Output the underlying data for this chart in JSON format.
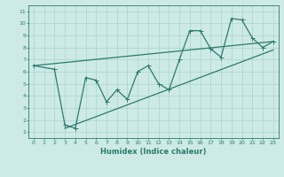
{
  "title": "",
  "xlabel": "Humidex (Indice chaleur)",
  "ylabel": "",
  "xlim": [
    -0.5,
    23.5
  ],
  "ylim": [
    0.5,
    11.5
  ],
  "xticks": [
    0,
    1,
    2,
    3,
    4,
    5,
    6,
    7,
    8,
    9,
    10,
    11,
    12,
    13,
    14,
    15,
    16,
    17,
    18,
    19,
    20,
    21,
    22,
    23
  ],
  "yticks": [
    1,
    2,
    3,
    4,
    5,
    6,
    7,
    8,
    9,
    10,
    11
  ],
  "line_color": "#2a7b6e",
  "bg_color": "#ceeae6",
  "grid_color": "#a8d4ce",
  "line1_x": [
    0,
    2,
    3,
    4,
    5,
    6,
    7,
    8,
    9,
    10,
    11,
    12,
    13,
    14,
    15,
    16,
    17,
    18,
    19,
    20,
    21,
    22,
    23
  ],
  "line1_y": [
    6.5,
    6.2,
    1.6,
    1.3,
    5.5,
    5.3,
    3.5,
    4.5,
    3.7,
    6.0,
    6.5,
    5.0,
    4.5,
    7.0,
    9.4,
    9.4,
    7.9,
    7.2,
    10.4,
    10.3,
    8.8,
    8.0,
    8.5
  ],
  "line2_x": [
    0,
    23
  ],
  "line2_y": [
    6.5,
    8.5
  ],
  "line3_x": [
    3,
    23
  ],
  "line3_y": [
    1.3,
    7.8
  ],
  "xlabel_fontsize": 6.0,
  "tick_fontsize": 4.5,
  "linewidth": 0.9,
  "markersize": 2.0
}
